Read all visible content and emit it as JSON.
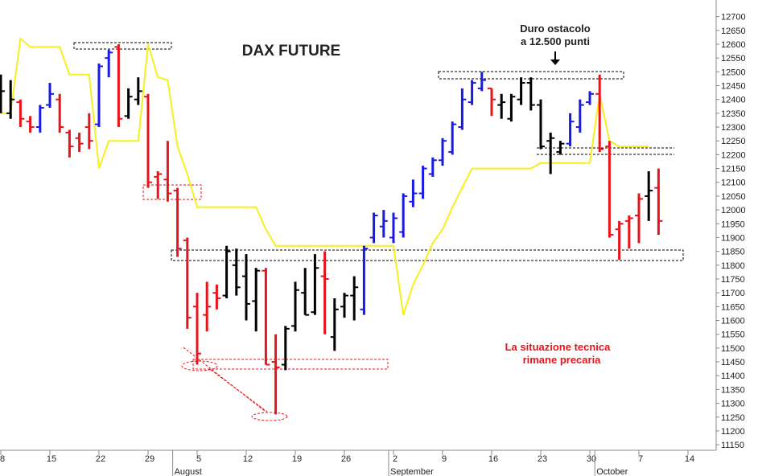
{
  "chart_data": {
    "type": "ohlc",
    "title": "DAX FUTURE",
    "annotations": [
      "Duro ostacolo",
      "a 12.500 punti",
      "La situazione tecnica",
      "rimane precaria"
    ],
    "months": [
      "August",
      "September",
      "October"
    ],
    "categories": [
      "8",
      null,
      null,
      null,
      null,
      "15",
      null,
      null,
      null,
      null,
      "22",
      null,
      null,
      null,
      null,
      "29",
      null,
      null,
      null,
      null,
      "5",
      null,
      null,
      null,
      null,
      "12",
      null,
      null,
      null,
      null,
      "19",
      null,
      null,
      null,
      null,
      "26",
      null,
      null,
      null,
      null,
      "2",
      null,
      null,
      null,
      null,
      "9",
      null,
      null,
      null,
      null,
      "16",
      null,
      null,
      null,
      null,
      "23",
      null,
      null,
      null,
      null,
      "30",
      null,
      null,
      null,
      null,
      "7",
      null,
      null,
      null,
      null,
      "14"
    ],
    "open": [
      12460,
      12350,
      12390,
      12320,
      12300,
      12380,
      12400,
      12280,
      12260,
      12300,
      12310,
      12550,
      12590,
      12340,
      12400,
      12410,
      12120,
      12110,
      12070,
      11890,
      11650,
      11620,
      11700,
      11690,
      11800,
      11760,
      11670,
      11780,
      11450,
      11440,
      11580,
      11700,
      11630,
      11760,
      11540,
      11650,
      11690,
      11640,
      11900,
      11940,
      11900,
      11920,
      12030,
      12060,
      12130,
      12180,
      12210,
      12300,
      12390,
      12440,
      12440,
      12380,
      12330,
      12400,
      12460,
      12380,
      12250,
      12210,
      12240,
      12300,
      12390,
      12420,
      12230,
      11930,
      11960,
      11980,
      12050,
      12080,
      null,
      null,
      null
    ],
    "high": [
      12490,
      12470,
      12400,
      12340,
      12380,
      12460,
      12420,
      12290,
      12280,
      12350,
      12530,
      12580,
      12600,
      12440,
      12480,
      12420,
      12140,
      12250,
      12080,
      11900,
      11700,
      11740,
      11730,
      11870,
      11860,
      11840,
      11790,
      11790,
      11550,
      11580,
      11740,
      11790,
      11840,
      11850,
      11680,
      11700,
      11760,
      11870,
      11990,
      12000,
      11990,
      12060,
      12110,
      12160,
      12190,
      12260,
      12320,
      12440,
      12470,
      12500,
      12440,
      12420,
      12420,
      12480,
      12480,
      12400,
      12280,
      12250,
      12350,
      12400,
      12430,
      12490,
      12250,
      11960,
      11980,
      12060,
      12140,
      12150,
      null,
      null,
      null
    ],
    "low": [
      12350,
      12330,
      12300,
      12280,
      12280,
      12370,
      12280,
      12190,
      12210,
      12220,
      12300,
      12480,
      12300,
      12330,
      12380,
      12080,
      12040,
      12030,
      11830,
      11570,
      11440,
      11560,
      11640,
      11680,
      11690,
      11600,
      11560,
      11440,
      11260,
      11420,
      11560,
      11620,
      11620,
      11550,
      11490,
      11610,
      11600,
      11620,
      11880,
      11900,
      11880,
      11900,
      12010,
      12040,
      12120,
      12160,
      12200,
      12290,
      12380,
      12430,
      12340,
      12330,
      12320,
      12380,
      12360,
      12220,
      12130,
      12200,
      12230,
      12280,
      12380,
      12210,
      11900,
      11820,
      11860,
      11880,
      11960,
      11910,
      null,
      null,
      null
    ],
    "close": [
      12430,
      12400,
      12330,
      12300,
      12370,
      12420,
      12300,
      12230,
      12240,
      12250,
      12520,
      12570,
      12330,
      12410,
      12430,
      12100,
      12130,
      12060,
      11860,
      11610,
      11480,
      11650,
      11680,
      11850,
      11720,
      11660,
      11780,
      11440,
      11430,
      11570,
      11710,
      11620,
      11790,
      11750,
      11640,
      11690,
      11720,
      11860,
      11980,
      11960,
      11970,
      12050,
      12060,
      12150,
      12180,
      12250,
      12310,
      12400,
      12460,
      12470,
      12400,
      12390,
      12410,
      12460,
      12380,
      12230,
      12260,
      12240,
      12320,
      12380,
      12420,
      12220,
      11910,
      11950,
      11970,
      12040,
      12070,
      11960,
      null,
      null,
      null
    ],
    "colors": [
      "#000000",
      "#000000",
      "#e8141b",
      "#e8141b",
      "#1a1ae6",
      "#1a1ae6",
      "#e8141b",
      "#e8141b",
      "#e8141b",
      "#e8141b",
      "#1a1ae6",
      "#1a1ae6",
      "#e8141b",
      "#000000",
      "#000000",
      "#e8141b",
      "#e8141b",
      "#e8141b",
      "#e8141b",
      "#e8141b",
      "#e8141b",
      "#e8141b",
      "#e8141b",
      "#000000",
      "#000000",
      "#000000",
      "#000000",
      "#e8141b",
      "#e8141b",
      "#000000",
      "#000000",
      "#000000",
      "#000000",
      "#e8141b",
      "#000000",
      "#000000",
      "#000000",
      "#1a1ae6",
      "#1a1ae6",
      "#1a1ae6",
      "#1a1ae6",
      "#1a1ae6",
      "#1a1ae6",
      "#1a1ae6",
      "#1a1ae6",
      "#1a1ae6",
      "#1a1ae6",
      "#1a1ae6",
      "#1a1ae6",
      "#1a1ae6",
      "#e8141b",
      "#000000",
      "#000000",
      "#000000",
      "#000000",
      "#000000",
      "#000000",
      "#000000",
      "#1a1ae6",
      "#1a1ae6",
      "#1a1ae6",
      "#e8141b",
      "#e8141b",
      "#e8141b",
      "#e8141b",
      "#e8141b",
      "#000000",
      "#e8141b",
      null,
      null,
      null
    ],
    "line": {
      "color": "#f5f01e",
      "values": [
        12350,
        12350,
        12620,
        12590,
        12590,
        12590,
        12590,
        12490,
        12490,
        12490,
        12150,
        12250,
        12250,
        12250,
        12250,
        12600,
        12480,
        12470,
        12230,
        12130,
        12010,
        12010,
        12010,
        12010,
        12010,
        12010,
        12010,
        11930,
        11870,
        11870,
        11870,
        11870,
        11870,
        11870,
        11870,
        11870,
        11870,
        11870,
        11870,
        11870,
        11870,
        11620,
        11730,
        11800,
        11880,
        11930,
        12010,
        12080,
        12150,
        12150,
        12150,
        12150,
        12150,
        12150,
        12150,
        12170,
        12170,
        12170,
        12170,
        12170,
        12170,
        12420,
        12250,
        12230,
        12230,
        12230,
        12230,
        null,
        null,
        null,
        null
      ]
    },
    "ylim": [
      11130,
      12760
    ],
    "yticks": [
      11150,
      11200,
      11250,
      11300,
      11350,
      11400,
      11450,
      11500,
      11550,
      11600,
      11650,
      11700,
      11750,
      11800,
      11850,
      11900,
      11950,
      12000,
      12050,
      12100,
      12150,
      12200,
      12250,
      12300,
      12350,
      12400,
      12450,
      12500,
      12550,
      12600,
      12650,
      12700
    ]
  }
}
